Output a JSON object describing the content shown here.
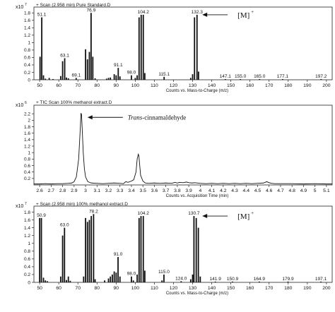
{
  "chart_data": [
    {
      "type": "bar",
      "title": "+ Scan (2.958 min) Pure Standard.D",
      "y_scale_label": "x10",
      "y_scale_exp": "7",
      "xlabel": "Counts vs. Mass-to-Charge (m/z)",
      "xlim": [
        47,
        203
      ],
      "ylim": [
        0,
        1.9
      ],
      "x_ticks": [
        "50",
        "60",
        "70",
        "80",
        "90",
        "100",
        "110",
        "120",
        "130",
        "140",
        "150",
        "160",
        "170",
        "180",
        "190",
        "200"
      ],
      "y_ticks": [
        "1.8",
        "1.6",
        "1.4",
        "1.2",
        "1",
        "0.8",
        "0.6",
        "0.4",
        "0.2",
        "0"
      ],
      "annotation": {
        "text": "[M]",
        "sup": "+",
        "x": 134.3,
        "y": 1.75
      },
      "peaks": [
        {
          "x": 50.2,
          "y": 0.62
        },
        {
          "x": 51.1,
          "y": 1.68
        },
        {
          "x": 52.0,
          "y": 0.12
        },
        {
          "x": 53.0,
          "y": 0.03
        },
        {
          "x": 55.0,
          "y": 0.05
        },
        {
          "x": 57.0,
          "y": 0.02
        },
        {
          "x": 61.0,
          "y": 0.1
        },
        {
          "x": 62.0,
          "y": 0.5
        },
        {
          "x": 63.1,
          "y": 0.58
        },
        {
          "x": 64.0,
          "y": 0.06
        },
        {
          "x": 65.0,
          "y": 0.04
        },
        {
          "x": 69.1,
          "y": 0.05
        },
        {
          "x": 74.0,
          "y": 0.82
        },
        {
          "x": 75.0,
          "y": 0.55
        },
        {
          "x": 76.0,
          "y": 0.75
        },
        {
          "x": 76.9,
          "y": 1.8
        },
        {
          "x": 77.8,
          "y": 0.62
        },
        {
          "x": 79.0,
          "y": 0.04
        },
        {
          "x": 85.0,
          "y": 0.03
        },
        {
          "x": 86.0,
          "y": 0.05
        },
        {
          "x": 87.0,
          "y": 0.06
        },
        {
          "x": 89.0,
          "y": 0.15
        },
        {
          "x": 90.0,
          "y": 0.12
        },
        {
          "x": 91.1,
          "y": 0.32
        },
        {
          "x": 92.0,
          "y": 0.09
        },
        {
          "x": 98.0,
          "y": 0.12
        },
        {
          "x": 100.0,
          "y": 0.05
        },
        {
          "x": 101.0,
          "y": 0.12
        },
        {
          "x": 102.0,
          "y": 1.68
        },
        {
          "x": 103.1,
          "y": 1.75
        },
        {
          "x": 104.2,
          "y": 1.75
        },
        {
          "x": 105.0,
          "y": 0.18
        },
        {
          "x": 115.1,
          "y": 0.08
        },
        {
          "x": 129.0,
          "y": 0.05
        },
        {
          "x": 130.0,
          "y": 0.15
        },
        {
          "x": 131.0,
          "y": 1.68
        },
        {
          "x": 132.3,
          "y": 1.75
        },
        {
          "x": 133.1,
          "y": 0.22
        },
        {
          "x": 147.1,
          "y": 0.02
        },
        {
          "x": 155.0,
          "y": 0.02
        },
        {
          "x": 165.0,
          "y": 0.02
        },
        {
          "x": 177.1,
          "y": 0.02
        },
        {
          "x": 197.2,
          "y": 0.02
        }
      ],
      "labels": [
        {
          "text": "51.1",
          "x": 51.1,
          "y": 1.68
        },
        {
          "text": "63.1",
          "x": 63.1,
          "y": 0.58
        },
        {
          "text": "69.1",
          "x": 69.1,
          "y": 0.05
        },
        {
          "text": "76.9",
          "x": 76.9,
          "y": 1.8
        },
        {
          "text": "91.1",
          "x": 91.1,
          "y": 0.32
        },
        {
          "text": "98.0",
          "x": 98.0,
          "y": 0.12
        },
        {
          "text": "104.2",
          "x": 104.2,
          "y": 1.75
        },
        {
          "text": "115.1",
          "x": 115.1,
          "y": 0.08
        },
        {
          "text": "132.3",
          "x": 132.3,
          "y": 1.75
        },
        {
          "text": "147.1",
          "x": 147.1,
          "y": 0.02
        },
        {
          "text": "155.0",
          "x": 155.0,
          "y": 0.02
        },
        {
          "text": "165.0",
          "x": 165.0,
          "y": 0.02
        },
        {
          "text": "177.1",
          "x": 177.1,
          "y": 0.02
        },
        {
          "text": "197.2",
          "x": 197.2,
          "y": 0.02
        }
      ]
    },
    {
      "type": "line",
      "title": "+ TIC Scan 100% methanol extract.D",
      "y_scale_label": "x10",
      "y_scale_exp": "6",
      "xlabel": "Counts vs. Acquisition Time (min)",
      "xlim": [
        2.55,
        5.15
      ],
      "ylim": [
        0,
        2.4
      ],
      "x_ticks": [
        "2.6",
        "2.7",
        "2.8",
        "2.9",
        "3",
        "3.1",
        "3.2",
        "3.3",
        "3.4",
        "3.5",
        "3.6",
        "3.7",
        "3.8",
        "3.9",
        "4",
        "4.1",
        "4.2",
        "4.3",
        "4.4",
        "4.5",
        "4.6",
        "4.7",
        "4.8",
        "4.9",
        "5",
        "5.1"
      ],
      "y_ticks": [
        "2.2",
        "2",
        "1.8",
        "1.6",
        "1.4",
        "1.2",
        "1",
        "0.8",
        "0.6",
        "0.4",
        "0.2"
      ],
      "annotation": {
        "text_italic": "Trans",
        "text": "-cinnamaldehyde",
        "x": 2.98,
        "y": 2.22
      },
      "x": [
        2.55,
        2.6,
        2.65,
        2.7,
        2.75,
        2.8,
        2.85,
        2.88,
        2.9,
        2.92,
        2.94,
        2.955,
        2.96,
        2.965,
        2.97,
        2.98,
        2.99,
        3.0,
        3.02,
        3.05,
        3.1,
        3.15,
        3.2,
        3.25,
        3.3,
        3.33,
        3.35,
        3.37,
        3.4,
        3.42,
        3.44,
        3.45,
        3.46,
        3.465,
        3.47,
        3.48,
        3.5,
        3.52,
        3.55,
        3.6,
        3.65,
        3.7,
        3.75,
        3.78,
        3.8,
        3.82,
        3.85,
        3.88,
        3.9,
        3.93,
        3.95,
        4.0,
        4.05,
        4.1,
        4.15,
        4.2,
        4.25,
        4.3,
        4.35,
        4.4,
        4.45,
        4.5,
        4.55,
        4.58,
        4.6,
        4.62,
        4.65,
        4.7,
        4.8,
        4.9,
        5.0,
        5.1,
        5.15
      ],
      "y": [
        0.03,
        0.03,
        0.04,
        0.03,
        0.04,
        0.04,
        0.05,
        0.06,
        0.1,
        0.25,
        0.8,
        1.8,
        2.22,
        2.18,
        1.8,
        1.0,
        0.5,
        0.25,
        0.1,
        0.06,
        0.05,
        0.04,
        0.05,
        0.06,
        0.05,
        0.04,
        0.1,
        0.08,
        0.12,
        0.16,
        0.4,
        0.8,
        0.95,
        0.9,
        0.7,
        0.3,
        0.12,
        0.06,
        0.05,
        0.06,
        0.05,
        0.06,
        0.05,
        0.08,
        0.06,
        0.08,
        0.07,
        0.09,
        0.07,
        0.06,
        0.07,
        0.05,
        0.04,
        0.05,
        0.04,
        0.05,
        0.04,
        0.05,
        0.04,
        0.05,
        0.04,
        0.05,
        0.06,
        0.1,
        0.07,
        0.05,
        0.04,
        0.04,
        0.04,
        0.03,
        0.04,
        0.03,
        0.03
      ]
    },
    {
      "type": "bar",
      "title": "+ Scan (2.958 min) 100% methanol extract.D",
      "y_scale_label": "x10",
      "y_scale_exp": "7",
      "xlabel": "Counts vs. Mass-to-Charge (m/z)",
      "xlim": [
        47,
        203
      ],
      "ylim": [
        0,
        1.9
      ],
      "x_ticks": [
        "50",
        "60",
        "70",
        "80",
        "90",
        "100",
        "110",
        "120",
        "130",
        "140",
        "150",
        "160",
        "170",
        "180",
        "190",
        "200"
      ],
      "y_ticks": [
        "1.8",
        "1.6",
        "1.4",
        "1.2",
        "1",
        "0.8",
        "0.6",
        "0.4",
        "0.2",
        "0"
      ],
      "annotation": {
        "text": "[M]",
        "sup": "+",
        "x": 134.3,
        "y": 1.7
      },
      "peaks": [
        {
          "x": 50.0,
          "y": 1.65
        },
        {
          "x": 50.9,
          "y": 1.65
        },
        {
          "x": 52.0,
          "y": 0.12
        },
        {
          "x": 53.0,
          "y": 0.05
        },
        {
          "x": 54.0,
          "y": 0.03
        },
        {
          "x": 61.0,
          "y": 0.15
        },
        {
          "x": 62.0,
          "y": 1.2
        },
        {
          "x": 63.0,
          "y": 1.4
        },
        {
          "x": 64.0,
          "y": 0.06
        },
        {
          "x": 65.0,
          "y": 0.15
        },
        {
          "x": 66.0,
          "y": 0.04
        },
        {
          "x": 73.0,
          "y": 0.15
        },
        {
          "x": 74.0,
          "y": 1.65
        },
        {
          "x": 75.0,
          "y": 1.55
        },
        {
          "x": 76.0,
          "y": 1.6
        },
        {
          "x": 77.0,
          "y": 1.7
        },
        {
          "x": 78.2,
          "y": 1.75
        },
        {
          "x": 79.0,
          "y": 0.08
        },
        {
          "x": 84.0,
          "y": 0.05
        },
        {
          "x": 86.0,
          "y": 0.1
        },
        {
          "x": 87.0,
          "y": 0.15
        },
        {
          "x": 88.0,
          "y": 0.2
        },
        {
          "x": 89.0,
          "y": 0.28
        },
        {
          "x": 90.0,
          "y": 0.25
        },
        {
          "x": 91.0,
          "y": 0.65
        },
        {
          "x": 92.0,
          "y": 0.15
        },
        {
          "x": 98.0,
          "y": 0.15
        },
        {
          "x": 99.0,
          "y": 0.05
        },
        {
          "x": 101.0,
          "y": 0.2
        },
        {
          "x": 102.0,
          "y": 1.65
        },
        {
          "x": 103.0,
          "y": 1.7
        },
        {
          "x": 104.2,
          "y": 1.7
        },
        {
          "x": 105.0,
          "y": 0.3
        },
        {
          "x": 114.0,
          "y": 0.05
        },
        {
          "x": 115.0,
          "y": 0.2
        },
        {
          "x": 124.0,
          "y": 0.03
        },
        {
          "x": 129.0,
          "y": 0.08
        },
        {
          "x": 130.0,
          "y": 0.2
        },
        {
          "x": 130.7,
          "y": 1.7
        },
        {
          "x": 131.9,
          "y": 1.65
        },
        {
          "x": 133.0,
          "y": 1.4
        },
        {
          "x": 134.0,
          "y": 0.15
        },
        {
          "x": 141.9,
          "y": 0.02
        },
        {
          "x": 150.9,
          "y": 0.02
        },
        {
          "x": 164.9,
          "y": 0.02
        },
        {
          "x": 179.9,
          "y": 0.02
        },
        {
          "x": 197.1,
          "y": 0.02
        }
      ],
      "labels": [
        {
          "text": "50.9",
          "x": 50.9,
          "y": 1.65
        },
        {
          "text": "63.0",
          "x": 63.0,
          "y": 1.4
        },
        {
          "text": "78.2",
          "x": 78.2,
          "y": 1.75
        },
        {
          "text": "91.0",
          "x": 91.0,
          "y": 0.65
        },
        {
          "text": "98.0",
          "x": 98.0,
          "y": 0.15
        },
        {
          "text": "104.2",
          "x": 104.2,
          "y": 1.7
        },
        {
          "text": "115.0",
          "x": 115.0,
          "y": 0.2
        },
        {
          "text": "124.0",
          "x": 124.0,
          "y": 0.03
        },
        {
          "text": "130.7",
          "x": 130.7,
          "y": 1.7
        },
        {
          "text": "141.9",
          "x": 141.9,
          "y": 0.02
        },
        {
          "text": "150.9",
          "x": 150.9,
          "y": 0.02
        },
        {
          "text": "164.9",
          "x": 164.9,
          "y": 0.02
        },
        {
          "text": "179.9",
          "x": 179.9,
          "y": 0.02
        },
        {
          "text": "197.1",
          "x": 197.1,
          "y": 0.02
        }
      ]
    }
  ]
}
